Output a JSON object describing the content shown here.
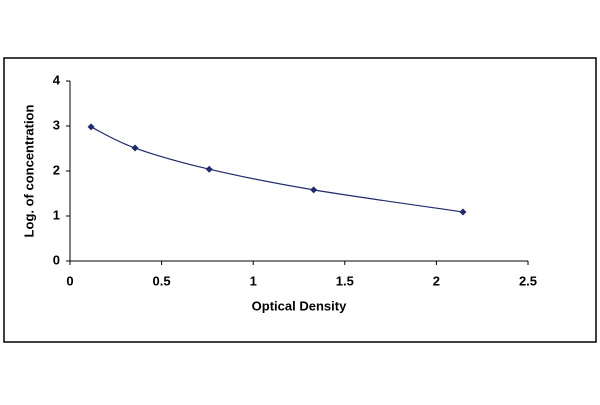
{
  "chart_data": {
    "type": "scatter",
    "curve": "smooth",
    "x_label": "Optical Density",
    "y_label": "Log. of concentration",
    "series": [
      {
        "color": "#1f2a6b",
        "x": [
          0.115,
          0.355,
          0.76,
          1.33,
          2.145
        ],
        "values": [
          2.98,
          2.51,
          2.04,
          1.58,
          1.09
        ]
      }
    ],
    "xlim": [
      0,
      2.5
    ],
    "xticks": [
      0,
      0.5,
      1,
      1.5,
      2,
      2.5
    ],
    "ylim": [
      0,
      4
    ],
    "yticks": [
      0,
      1,
      2,
      3,
      4
    ],
    "grid": false
  }
}
